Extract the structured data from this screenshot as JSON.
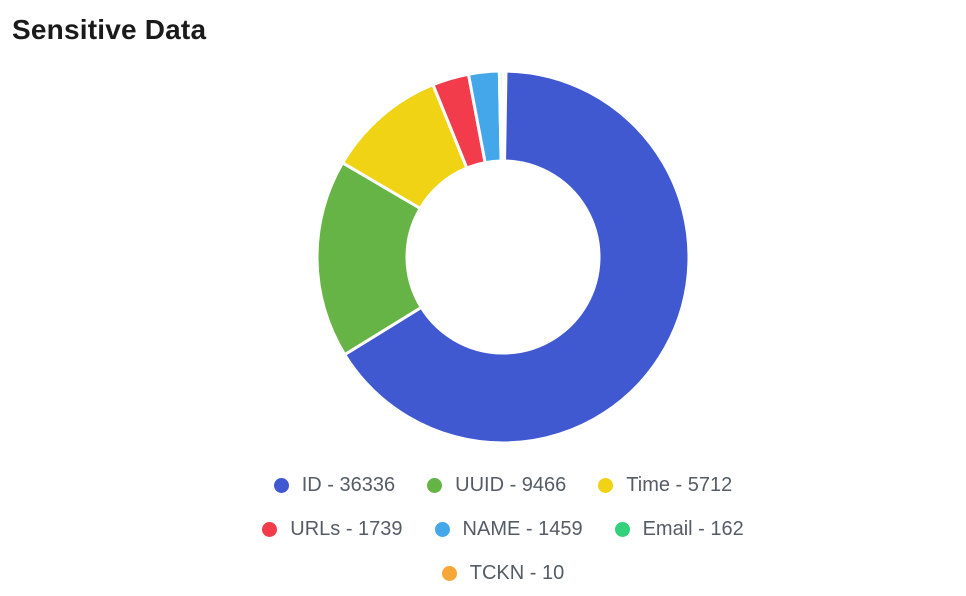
{
  "title": "Sensitive Data",
  "chart_data": {
    "type": "pie",
    "variant": "donut",
    "legend_position": "bottom",
    "categories": [
      "ID",
      "UUID",
      "Time",
      "URLs",
      "NAME",
      "Email",
      "TCKN"
    ],
    "values": [
      36336,
      9466,
      5712,
      1739,
      1459,
      162,
      10
    ],
    "colors": [
      "#4059d1",
      "#67b446",
      "#efd314",
      "#f23c4b",
      "#43a7ea",
      "#34d17b",
      "#f7a638"
    ],
    "legend_labels": [
      "ID - 36336",
      "UUID - 9466",
      "Time - 5712",
      "URLs - 1739",
      "NAME - 1459",
      "Email - 162",
      "TCKN - 10"
    ]
  }
}
